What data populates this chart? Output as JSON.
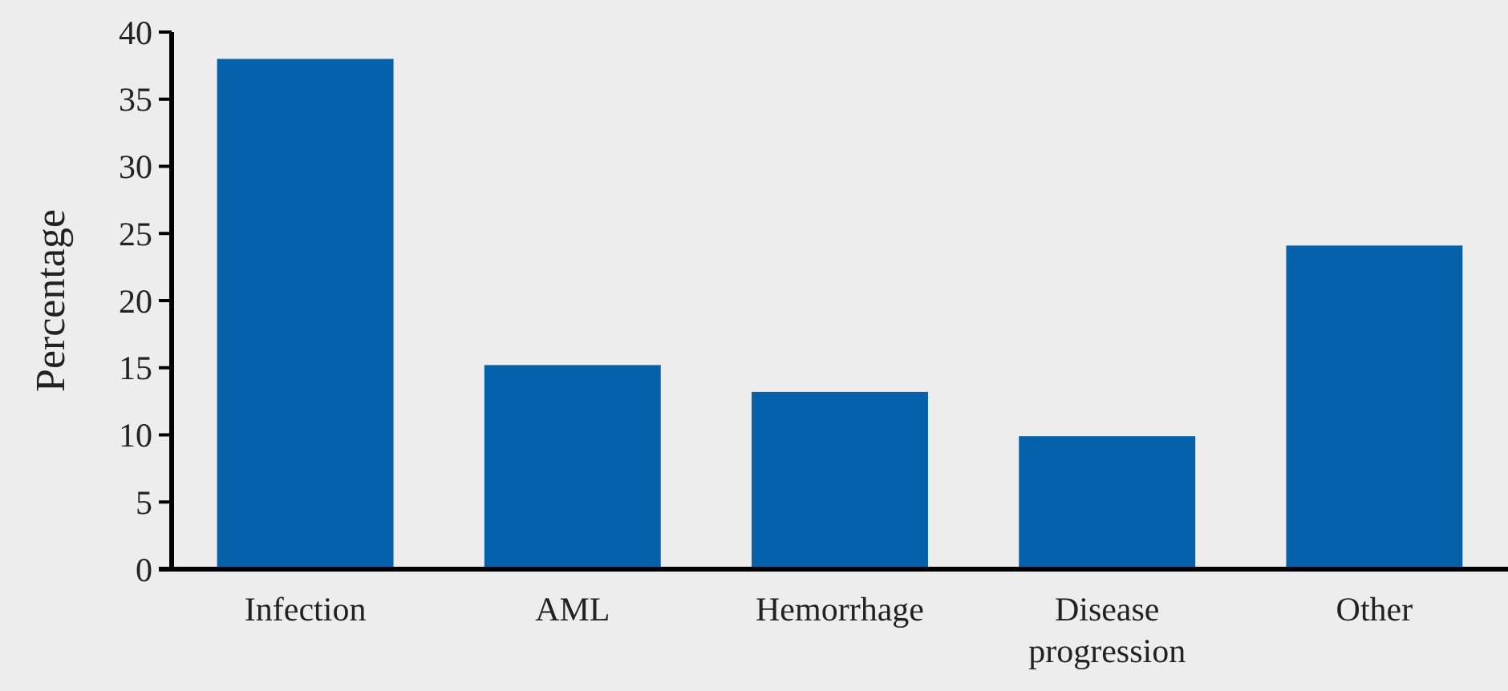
{
  "chart_data": {
    "type": "bar",
    "ylabel": "Percentage",
    "categories": [
      "Infection",
      "AML",
      "Hemorrhage",
      "Disease progression",
      "Other"
    ],
    "values": [
      38,
      15.2,
      13.2,
      9.9,
      24.1
    ],
    "color": "#0561aa",
    "ylim": [
      0,
      40
    ],
    "yticks": [
      0,
      5,
      10,
      15,
      20,
      25,
      30,
      35,
      40
    ],
    "grid": false
  }
}
